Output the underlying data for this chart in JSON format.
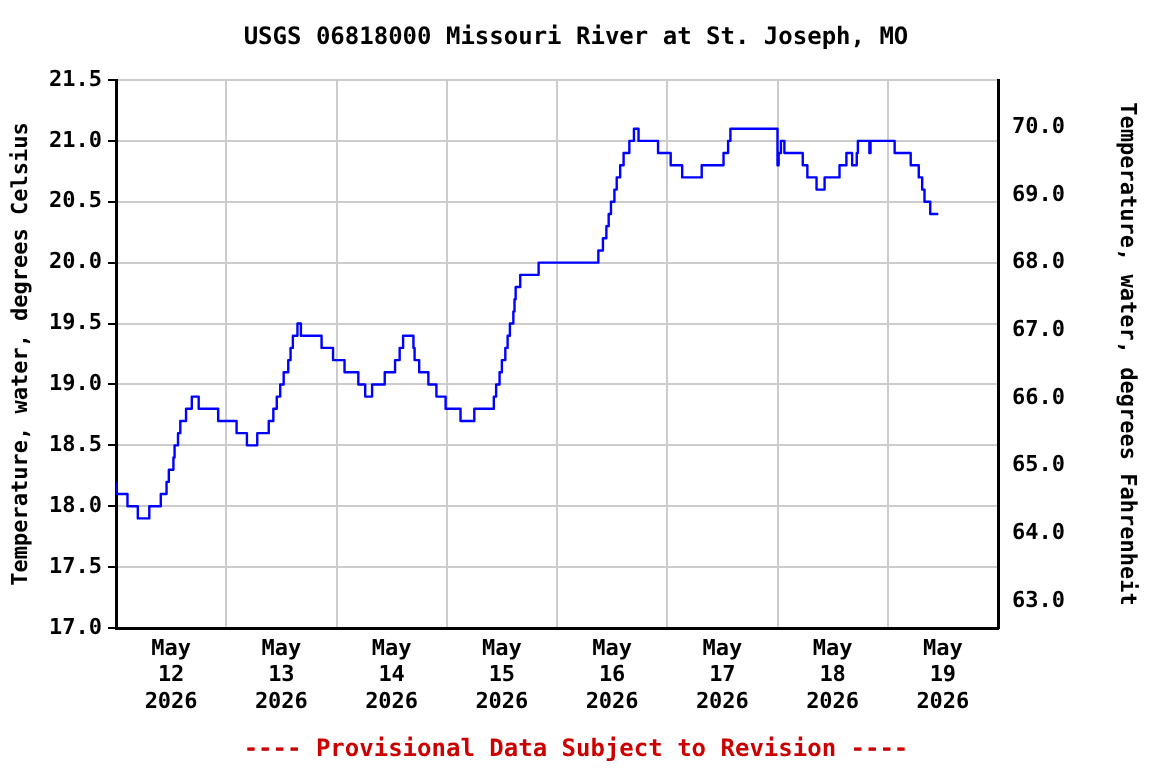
{
  "chart_data": {
    "type": "step",
    "title": "USGS 06818000 Missouri River at St. Joseph, MO",
    "ylabel": "Temperature, water, degrees Celsius",
    "y2label": "Temperature, water, degrees Fahrenheit",
    "annotations": [
      "---- Provisional Data Subject to Revision ----"
    ],
    "x": [
      "2026-05-12T00:00",
      "2026-05-12T02:30",
      "2026-05-12T04:45",
      "2026-05-12T07:15",
      "2026-05-12T09:45",
      "2026-05-12T11:00",
      "2026-05-12T11:30",
      "2026-05-12T12:30",
      "2026-05-12T12:45",
      "2026-05-12T13:30",
      "2026-05-12T14:00",
      "2026-05-12T15:15",
      "2026-05-12T16:30",
      "2026-05-12T18:00",
      "2026-05-12T22:15",
      "2026-05-13T02:15",
      "2026-05-13T04:30",
      "2026-05-13T06:45",
      "2026-05-13T09:15",
      "2026-05-13T10:15",
      "2026-05-13T11:00",
      "2026-05-13T11:45",
      "2026-05-13T12:30",
      "2026-05-13T13:30",
      "2026-05-13T14:00",
      "2026-05-13T14:30",
      "2026-05-13T15:30",
      "2026-05-13T16:15",
      "2026-05-13T20:45",
      "2026-05-13T23:15",
      "2026-05-14T01:45",
      "2026-05-14T04:45",
      "2026-05-14T06:15",
      "2026-05-14T07:45",
      "2026-05-14T10:30",
      "2026-05-14T12:45",
      "2026-05-14T13:45",
      "2026-05-14T14:30",
      "2026-05-14T16:45",
      "2026-05-14T17:00",
      "2026-05-14T18:00",
      "2026-05-14T20:00",
      "2026-05-14T21:45",
      "2026-05-14T23:45",
      "2026-05-15T03:00",
      "2026-05-15T06:00",
      "2026-05-15T10:15",
      "2026-05-15T10:45",
      "2026-05-15T11:30",
      "2026-05-15T12:00",
      "2026-05-15T12:45",
      "2026-05-15T13:15",
      "2026-05-15T13:45",
      "2026-05-15T14:30",
      "2026-05-15T14:45",
      "2026-05-15T15:00",
      "2026-05-15T16:00",
      "2026-05-15T20:00",
      "2026-05-16T09:00",
      "2026-05-16T10:00",
      "2026-05-16T10:45",
      "2026-05-16T11:15",
      "2026-05-16T11:45",
      "2026-05-16T12:30",
      "2026-05-16T13:00",
      "2026-05-16T13:45",
      "2026-05-16T14:30",
      "2026-05-16T15:45",
      "2026-05-16T16:45",
      "2026-05-16T17:45",
      "2026-05-16T22:00",
      "2026-05-17T00:45",
      "2026-05-17T03:15",
      "2026-05-17T07:30",
      "2026-05-17T12:15",
      "2026-05-17T13:15",
      "2026-05-17T13:45",
      "2026-05-18T00:00",
      "2026-05-18T00:15",
      "2026-05-18T00:45",
      "2026-05-18T01:30",
      "2026-05-18T05:30",
      "2026-05-18T06:30",
      "2026-05-18T08:30",
      "2026-05-18T10:15",
      "2026-05-18T13:30",
      "2026-05-18T15:00",
      "2026-05-18T16:15",
      "2026-05-18T17:15",
      "2026-05-18T17:30",
      "2026-05-18T20:00",
      "2026-05-18T20:15",
      "2026-05-19T01:30",
      "2026-05-19T05:00",
      "2026-05-19T06:45",
      "2026-05-19T07:30",
      "2026-05-19T08:00",
      "2026-05-19T09:15",
      "2026-05-19T10:00",
      "2026-05-19T11:00"
    ],
    "series": [
      {
        "color": "#0000ff",
        "values": [
          18.2,
          18.1,
          18.0,
          17.9,
          18.0,
          18.1,
          18.2,
          18.3,
          18.4,
          18.5,
          18.6,
          18.7,
          18.8,
          18.9,
          18.8,
          18.7,
          18.6,
          18.5,
          18.6,
          18.7,
          18.8,
          18.9,
          19.0,
          19.1,
          19.2,
          19.3,
          19.4,
          19.5,
          19.4,
          19.3,
          19.2,
          19.1,
          19.0,
          18.9,
          19.0,
          19.1,
          19.2,
          19.3,
          19.4,
          19.3,
          19.2,
          19.1,
          19.0,
          18.9,
          18.8,
          18.7,
          18.8,
          18.9,
          19.0,
          19.1,
          19.2,
          19.3,
          19.4,
          19.5,
          19.6,
          19.7,
          19.8,
          19.9,
          20.0,
          20.1,
          20.2,
          20.3,
          20.4,
          20.5,
          20.6,
          20.7,
          20.8,
          20.9,
          21.0,
          21.1,
          21.0,
          20.9,
          20.8,
          20.7,
          20.8,
          20.9,
          21.0,
          21.1,
          20.8,
          20.9,
          21.0,
          20.9,
          20.8,
          20.7,
          20.6,
          20.7,
          20.8,
          20.9,
          20.8,
          20.9,
          21.0,
          20.9,
          21.0,
          20.9,
          20.8,
          20.7,
          20.6,
          20.5,
          20.4,
          20.4
        ]
      }
    ],
    "xlim": [
      "2026-05-12T00:00",
      "2026-05-20T00:00"
    ],
    "xticks": [
      {
        "value": "2026-05-12T00:00",
        "label": null
      },
      {
        "value": "2026-05-12T12:00",
        "label": "May 12 2026"
      },
      {
        "value": "2026-05-13T00:00",
        "label": null
      },
      {
        "value": "2026-05-13T12:00",
        "label": "May 13 2026"
      },
      {
        "value": "2026-05-14T00:00",
        "label": null
      },
      {
        "value": "2026-05-14T12:00",
        "label": "May 14 2026"
      },
      {
        "value": "2026-05-15T00:00",
        "label": null
      },
      {
        "value": "2026-05-15T12:00",
        "label": "May 15 2026"
      },
      {
        "value": "2026-05-16T00:00",
        "label": null
      },
      {
        "value": "2026-05-16T12:00",
        "label": "May 16 2026"
      },
      {
        "value": "2026-05-17T00:00",
        "label": null
      },
      {
        "value": "2026-05-17T12:00",
        "label": "May 17 2026"
      },
      {
        "value": "2026-05-18T00:00",
        "label": null
      },
      {
        "value": "2026-05-18T12:00",
        "label": "May 18 2026"
      },
      {
        "value": "2026-05-19T00:00",
        "label": null
      },
      {
        "value": "2026-05-19T12:00",
        "label": "May 19 2026"
      },
      {
        "value": "2026-05-20T00:00",
        "label": null
      }
    ],
    "ylim": [
      17.0,
      21.5
    ],
    "yticks": [
      {
        "value": 17,
        "label": "17.0"
      },
      {
        "value": 17.5,
        "label": "17.5"
      },
      {
        "value": 18,
        "label": "18.0"
      },
      {
        "value": 18.5,
        "label": "18.5"
      },
      {
        "value": 19,
        "label": "19.0"
      },
      {
        "value": 19.5,
        "label": "19.5"
      },
      {
        "value": 20,
        "label": "20.0"
      },
      {
        "value": 20.5,
        "label": "20.5"
      },
      {
        "value": 21,
        "label": "21.0"
      },
      {
        "value": 21.5,
        "label": "21.5"
      }
    ],
    "y2lim": [
      62.6,
      70.7
    ],
    "y2ticks": [
      {
        "value": 63,
        "label": "63.0"
      },
      {
        "value": 64,
        "label": "64.0"
      },
      {
        "value": 65,
        "label": "65.0"
      },
      {
        "value": 66,
        "label": "66.0"
      },
      {
        "value": 67,
        "label": "67.0"
      },
      {
        "value": 68,
        "label": "68.0"
      },
      {
        "value": 69,
        "label": "69.0"
      },
      {
        "value": 70,
        "label": "70.0"
      }
    ],
    "grid": true,
    "legend": false,
    "marker": "none",
    "line_style": "solid"
  }
}
